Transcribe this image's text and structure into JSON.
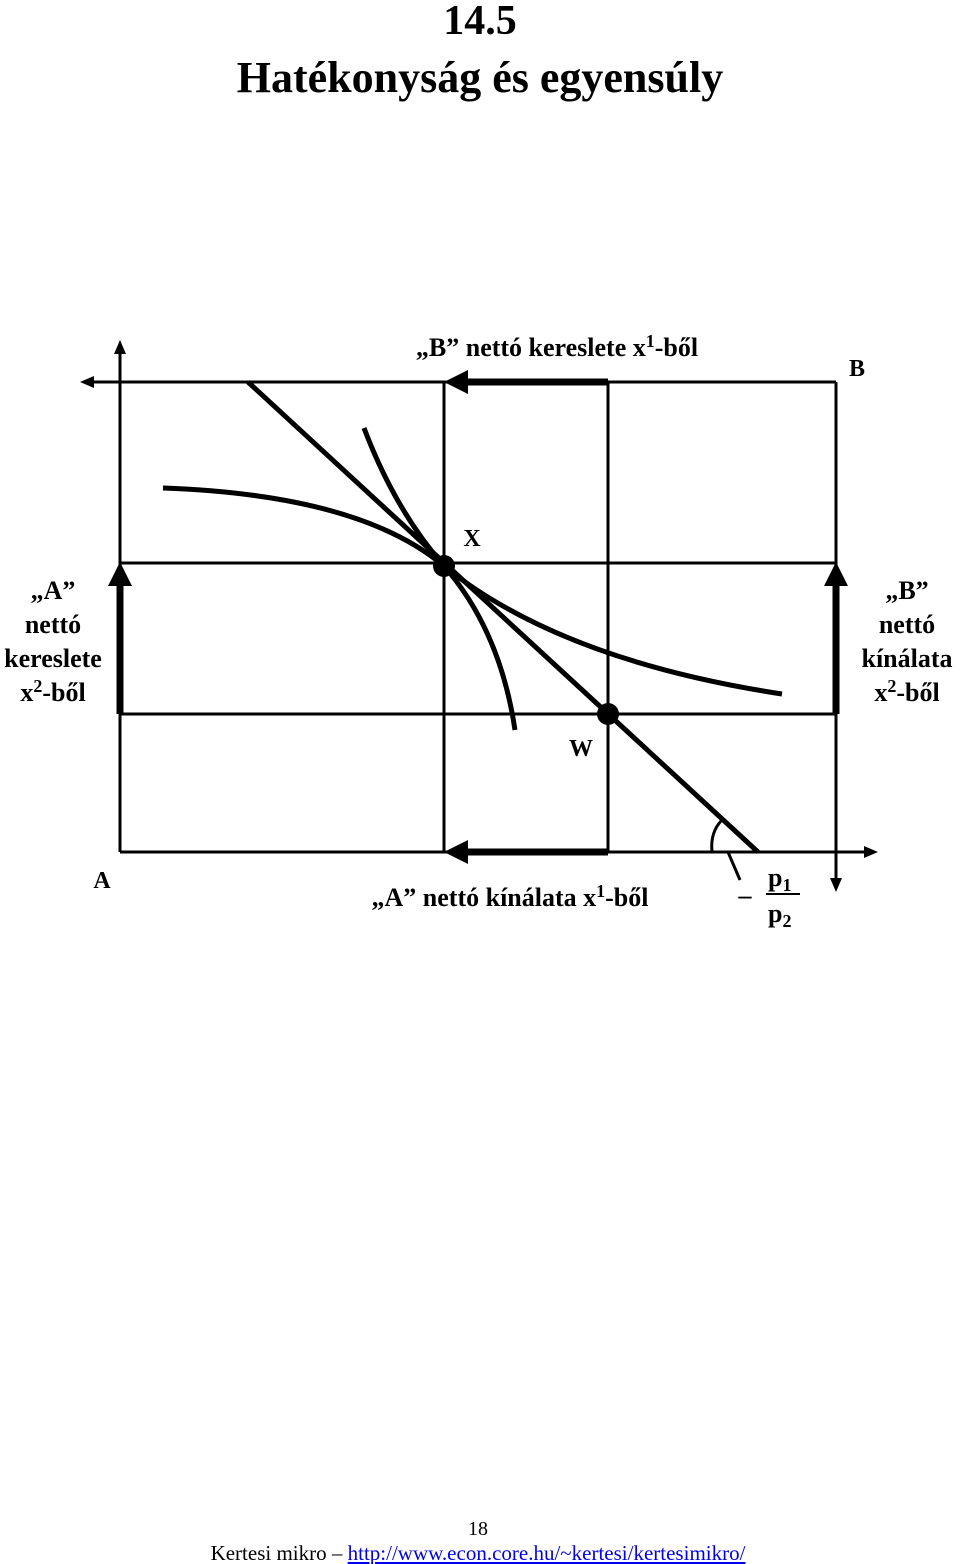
{
  "header": {
    "number": "14.5",
    "title": "Hatékonyság és egyensúly"
  },
  "diagram": {
    "top_label": {
      "text": "„B” nettó kereslete x",
      "sup": "1",
      "suffix": "-ből"
    },
    "origin_b": "B",
    "origin_a": "A",
    "point_x": "X",
    "point_w": "W",
    "left_label": {
      "lines": [
        "„A”",
        "nettó",
        "kereslete"
      ],
      "var": "x",
      "sup": "2",
      "suffix": "-ből"
    },
    "right_label": {
      "lines": [
        "„B”",
        "nettó",
        "kínálata"
      ],
      "var": "x",
      "sup": "2",
      "suffix": "-ből"
    },
    "bottom_label": {
      "text": "„A” nettó kínálata x",
      "sup": "1",
      "suffix": "-ből"
    },
    "price_ratio": {
      "sign": "–",
      "numerator": "p",
      "numerator_sub": "1",
      "denominator": "p",
      "denominator_sub": "2"
    }
  },
  "footer": {
    "page": "18",
    "source": "Kertesi mikro –",
    "url": "http://www.econ.core.hu/~kertesi/kertesimikro/"
  }
}
